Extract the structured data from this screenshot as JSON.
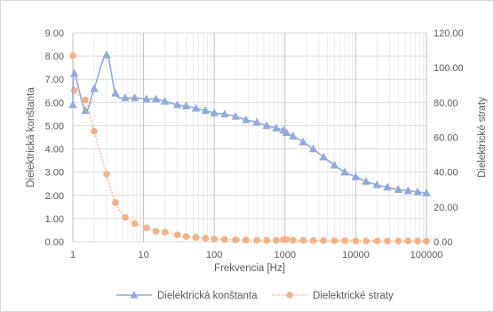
{
  "chart_data": {
    "type": "line",
    "x_scale": "log",
    "grid": true,
    "legend_position": "bottom",
    "xlabel": "Frekvencia [Hz]",
    "ylabel_left": "Dielektrická konštanta",
    "ylabel_right": "Dielektrické straty",
    "xlim": [
      1,
      100000
    ],
    "ylim_left": [
      0,
      9
    ],
    "ylim_right": [
      0,
      120
    ],
    "x_ticks": [
      {
        "value": 1,
        "label": "1"
      },
      {
        "value": 10,
        "label": "10"
      },
      {
        "value": 100,
        "label": "100"
      },
      {
        "value": 1000,
        "label": "1000"
      },
      {
        "value": 10000,
        "label": "10000"
      },
      {
        "value": 100000,
        "label": "100000"
      }
    ],
    "y_left_ticks": [
      {
        "value": 0,
        "label": "0.00"
      },
      {
        "value": 1,
        "label": "1.00"
      },
      {
        "value": 2,
        "label": "2.00"
      },
      {
        "value": 3,
        "label": "3.00"
      },
      {
        "value": 4,
        "label": "4.00"
      },
      {
        "value": 5,
        "label": "5.00"
      },
      {
        "value": 6,
        "label": "6.00"
      },
      {
        "value": 7,
        "label": "7.00"
      },
      {
        "value": 8,
        "label": "8.00"
      },
      {
        "value": 9,
        "label": "9.00"
      }
    ],
    "y_right_ticks": [
      {
        "value": 0,
        "label": "0.00"
      },
      {
        "value": 20,
        "label": "20.00"
      },
      {
        "value": 40,
        "label": "40.00"
      },
      {
        "value": 60,
        "label": "60.00"
      },
      {
        "value": 80,
        "label": "80.00"
      },
      {
        "value": 100,
        "label": "100.00"
      },
      {
        "value": 120,
        "label": "120.00"
      }
    ],
    "series": [
      {
        "name": "Dielektrická konštanta",
        "axis": "left",
        "color": "#8faadc",
        "marker": "triangle",
        "line_style": "solid",
        "points": [
          [
            1,
            5.9
          ],
          [
            1.05,
            7.25
          ],
          [
            1.5,
            5.65
          ],
          [
            2,
            6.6
          ],
          [
            3,
            8.05
          ],
          [
            4,
            6.4
          ],
          [
            5.5,
            6.2
          ],
          [
            7.5,
            6.2
          ],
          [
            11,
            6.15
          ],
          [
            15,
            6.15
          ],
          [
            20,
            6.05
          ],
          [
            30,
            5.9
          ],
          [
            40,
            5.85
          ],
          [
            55,
            5.75
          ],
          [
            75,
            5.65
          ],
          [
            100,
            5.55
          ],
          [
            140,
            5.5
          ],
          [
            200,
            5.4
          ],
          [
            280,
            5.25
          ],
          [
            400,
            5.15
          ],
          [
            550,
            5.0
          ],
          [
            750,
            4.9
          ],
          [
            950,
            4.8
          ],
          [
            1050,
            4.7
          ],
          [
            1300,
            4.55
          ],
          [
            1800,
            4.3
          ],
          [
            2500,
            4.0
          ],
          [
            3500,
            3.65
          ],
          [
            5000,
            3.3
          ],
          [
            7000,
            3.0
          ],
          [
            10000,
            2.8
          ],
          [
            14000,
            2.6
          ],
          [
            20000,
            2.45
          ],
          [
            28000,
            2.35
          ],
          [
            40000,
            2.25
          ],
          [
            55000,
            2.2
          ],
          [
            75000,
            2.15
          ],
          [
            100000,
            2.1
          ]
        ]
      },
      {
        "name": "Dielektrické straty",
        "axis": "right",
        "color": "#f4b183",
        "marker": "circle",
        "line_style": "dotted",
        "points": [
          [
            1,
            107
          ],
          [
            1.05,
            87
          ],
          [
            1.5,
            81.5
          ],
          [
            2,
            63.5
          ],
          [
            3,
            39
          ],
          [
            4,
            22.5
          ],
          [
            5.5,
            14
          ],
          [
            7.5,
            10.5
          ],
          [
            11,
            8
          ],
          [
            15,
            6
          ],
          [
            20,
            5.5
          ],
          [
            30,
            4
          ],
          [
            40,
            3
          ],
          [
            55,
            2.5
          ],
          [
            75,
            2
          ],
          [
            100,
            1.5
          ],
          [
            140,
            1.3
          ],
          [
            200,
            1.1
          ],
          [
            280,
            1
          ],
          [
            400,
            0.9
          ],
          [
            550,
            0.8
          ],
          [
            750,
            0.8
          ],
          [
            950,
            1.3
          ],
          [
            1050,
            1.3
          ],
          [
            1300,
            0.9
          ],
          [
            1800,
            0.8
          ],
          [
            2500,
            0.7
          ],
          [
            3500,
            0.7
          ],
          [
            5000,
            0.6
          ],
          [
            7000,
            0.6
          ],
          [
            10000,
            0.5
          ],
          [
            14000,
            0.5
          ],
          [
            20000,
            0.5
          ],
          [
            28000,
            0.4
          ],
          [
            40000,
            0.4
          ],
          [
            55000,
            0.4
          ],
          [
            75000,
            0.4
          ],
          [
            100000,
            0.4
          ]
        ]
      }
    ]
  }
}
